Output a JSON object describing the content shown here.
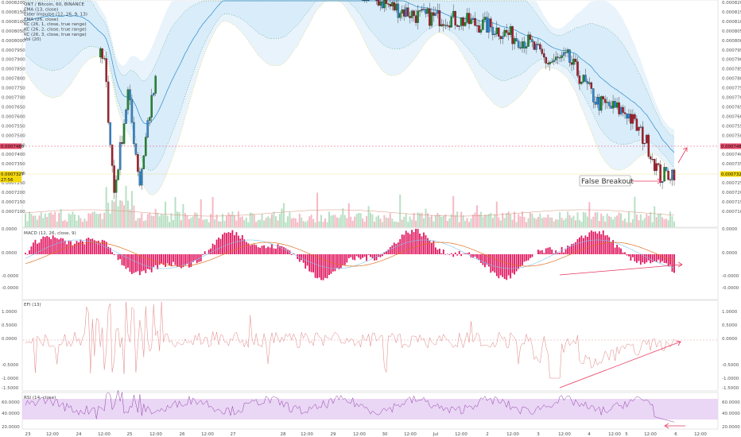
{
  "chart_data": {
    "type": "candlestick",
    "legend": [
      "ONT / Bitcoin, 60, BINANCE",
      "EMA (13, close)",
      "Elder Impulse (12, 26, 9, 13)",
      "EMA (26, close)",
      "KC (26, 1, close, true range)",
      "KC (26, 2, close, true range)",
      "KC (26, 3, close, true range)",
      "Vol (20)"
    ],
    "price_axis": {
      "ticks": [
        "0.0008200",
        "0.0008150",
        "0.0008100",
        "0.0008050",
        "0.0008000",
        "0.0007950",
        "0.0007900",
        "0.0007850",
        "0.0007800",
        "0.0007750",
        "0.0007700",
        "0.0007650",
        "0.0007600",
        "0.0007550",
        "0.0007500",
        "0.0007450",
        "0.0007400",
        "0.0007350",
        "0.0007300",
        "0.0007250",
        "0.0007200",
        "0.0007150",
        "0.0007100"
      ],
      "range": [
        0.000709,
        0.00082
      ]
    },
    "price_tags": [
      {
        "value": "0.0007480",
        "color": "#e84b6b"
      },
      {
        "value": "0.0007327",
        "color": "#f5d90a"
      },
      {
        "value": "27:56",
        "color": "#f5d90a"
      }
    ],
    "annotation": {
      "text": "False Breakout"
    },
    "macd": {
      "title": "MACD (12, 26, close, 9)",
      "ticks": [
        "0.0000",
        "0.0000",
        "-0.0000",
        "-0.0000"
      ]
    },
    "efi": {
      "title": "EFI (13)",
      "ticks": [
        "1.0000",
        "0.5000",
        "0.0000",
        "-0.5000",
        "-1.0000",
        "-1.5000"
      ]
    },
    "rsi": {
      "title": "RSI (14, close)",
      "ticks": [
        "60.0000",
        "40.0000",
        "20.0000"
      ],
      "band": [
        30,
        70
      ]
    },
    "time_axis": [
      "23",
      "12:00",
      "24",
      "12:00",
      "25",
      "12:00",
      "26",
      "12:00",
      "27",
      "28",
      "12:00",
      "29",
      "12:00",
      "30",
      "12:00",
      "Jul",
      "12:00",
      "2",
      "12:00",
      "3",
      "12:00",
      "4",
      "12:00",
      "5",
      "12:00",
      "6",
      "12:00"
    ],
    "colors": {
      "up": "#1a8f2a",
      "neutral": "#2e8bd8",
      "down": "#b11a28",
      "rsi_band": "#ead6f5",
      "macd_hist": "#e0175f",
      "annot": "#e8365c"
    }
  }
}
